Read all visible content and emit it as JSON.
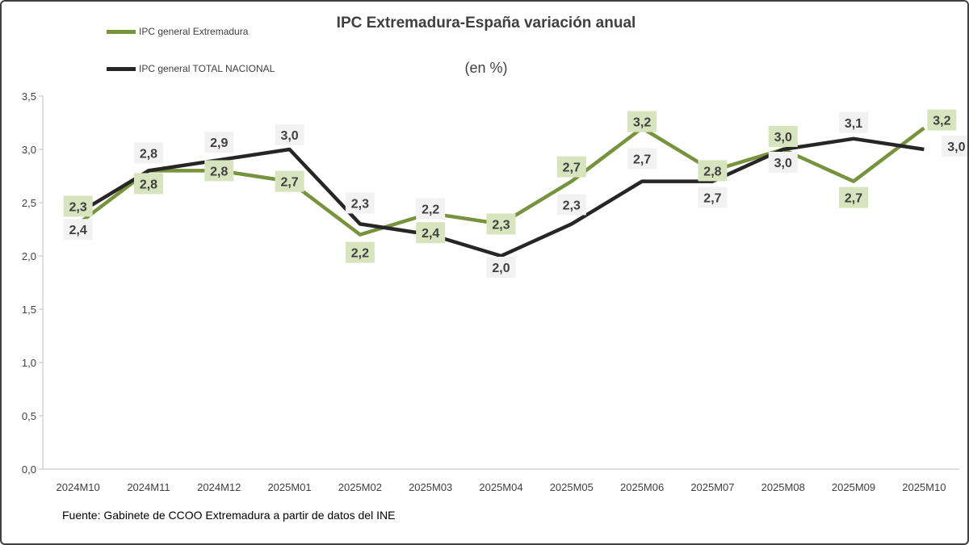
{
  "chart_data": {
    "type": "line",
    "title": "IPC Extremadura-España variación anual",
    "subtitle": "(en %)",
    "categories": [
      "2024M10",
      "2024M11",
      "2024M12",
      "2025M01",
      "2025M02",
      "2025M03",
      "2025M04",
      "2025M05",
      "2025M06",
      "2025M07",
      "2025M08",
      "2025M09",
      "2025M10"
    ],
    "series": [
      {
        "name": "IPC general Extremadura",
        "color": "#77933c",
        "label_bg": "#d7e4bd",
        "values": [
          2.3,
          2.8,
          2.8,
          2.7,
          2.2,
          2.4,
          2.3,
          2.7,
          3.2,
          2.8,
          3.0,
          2.7,
          3.2
        ],
        "labels": [
          "2,3",
          "2,8",
          "2,8",
          "2,7",
          "2,2",
          "2,4",
          "2,3",
          "2,7",
          "3,2",
          "2,8",
          "3,0",
          "2,7",
          "3,2"
        ]
      },
      {
        "name": "IPC general TOTAL NACIONAL",
        "color": "#262626",
        "label_bg": "#f2f2f2",
        "values": [
          2.4,
          2.8,
          2.9,
          3.0,
          2.3,
          2.2,
          2.0,
          2.3,
          2.7,
          2.7,
          3.0,
          3.1,
          3.0
        ],
        "labels": [
          "2,4",
          "2,8",
          "2,9",
          "3,0",
          "2,3",
          "2,2",
          "2,0",
          "2,3",
          "2,7",
          "2,7",
          "3,0",
          "3,1",
          "3,0"
        ]
      }
    ],
    "ylim": [
      0,
      3.5
    ],
    "yticks": [
      "0,0",
      "0,5",
      "1,0",
      "1,5",
      "2,0",
      "2,5",
      "3,0",
      "3,5"
    ],
    "grid": false,
    "legend": "top-left",
    "source": "Fuente: Gabinete de CCOO Extremadura a partir de datos del INE"
  }
}
